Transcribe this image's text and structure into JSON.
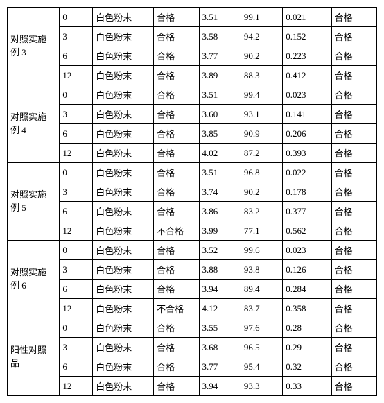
{
  "table": {
    "groups": [
      {
        "label_lines": [
          "对照实施",
          "例 3"
        ],
        "rows": [
          {
            "num": "0",
            "desc": "白色粉末",
            "pass": "合格",
            "v1": "3.51",
            "v2": "99.1",
            "v3": "0.021",
            "res": "合格"
          },
          {
            "num": "3",
            "desc": "白色粉末",
            "pass": "合格",
            "v1": "3.58",
            "v2": "94.2",
            "v3": "0.152",
            "res": "合格"
          },
          {
            "num": "6",
            "desc": "白色粉末",
            "pass": "合格",
            "v1": "3.77",
            "v2": "90.2",
            "v3": "0.223",
            "res": "合格"
          },
          {
            "num": "12",
            "desc": "白色粉末",
            "pass": "合格",
            "v1": "3.89",
            "v2": "88.3",
            "v3": "0.412",
            "res": "合格"
          }
        ]
      },
      {
        "label_lines": [
          "对照实施",
          "例 4"
        ],
        "rows": [
          {
            "num": "0",
            "desc": "白色粉末",
            "pass": "合格",
            "v1": "3.51",
            "v2": "99.4",
            "v3": "0.023",
            "res": "合格"
          },
          {
            "num": "3",
            "desc": "白色粉末",
            "pass": "合格",
            "v1": "3.60",
            "v2": "93.1",
            "v3": "0.141",
            "res": "合格"
          },
          {
            "num": "6",
            "desc": "白色粉末",
            "pass": "合格",
            "v1": "3.85",
            "v2": "90.9",
            "v3": "0.206",
            "res": "合格"
          },
          {
            "num": "12",
            "desc": "白色粉末",
            "pass": "合格",
            "v1": "4.02",
            "v2": "87.2",
            "v3": "0.393",
            "res": "合格"
          }
        ]
      },
      {
        "label_lines": [
          "对照实施",
          "例 5"
        ],
        "rows": [
          {
            "num": "0",
            "desc": "白色粉末",
            "pass": "合格",
            "v1": "3.51",
            "v2": "96.8",
            "v3": "0.022",
            "res": "合格"
          },
          {
            "num": "3",
            "desc": "白色粉末",
            "pass": "合格",
            "v1": "3.74",
            "v2": "90.2",
            "v3": "0.178",
            "res": "合格"
          },
          {
            "num": "6",
            "desc": "白色粉末",
            "pass": "合格",
            "v1": "3.86",
            "v2": "83.2",
            "v3": "0.377",
            "res": "合格"
          },
          {
            "num": "12",
            "desc": "白色粉末",
            "pass": "不合格",
            "v1": "3.99",
            "v2": "77.1",
            "v3": "0.562",
            "res": "合格"
          }
        ]
      },
      {
        "label_lines": [
          "对照实施",
          "例 6"
        ],
        "rows": [
          {
            "num": "0",
            "desc": "白色粉末",
            "pass": "合格",
            "v1": "3.52",
            "v2": "99.6",
            "v3": "0.023",
            "res": "合格"
          },
          {
            "num": "3",
            "desc": "白色粉末",
            "pass": "合格",
            "v1": "3.88",
            "v2": "93.8",
            "v3": "0.126",
            "res": "合格"
          },
          {
            "num": "6",
            "desc": "白色粉末",
            "pass": "合格",
            "v1": "3.94",
            "v2": "89.4",
            "v3": "0.284",
            "res": "合格"
          },
          {
            "num": "12",
            "desc": "白色粉末",
            "pass": "不合格",
            "v1": "4.12",
            "v2": "83.7",
            "v3": "0.358",
            "res": "合格"
          }
        ]
      },
      {
        "label_lines": [
          "阳性对照",
          "品"
        ],
        "rows": [
          {
            "num": "0",
            "desc": "白色粉末",
            "pass": "合格",
            "v1": "3.55",
            "v2": "97.6",
            "v3": "0.28",
            "res": "合格"
          },
          {
            "num": "3",
            "desc": "白色粉末",
            "pass": "合格",
            "v1": "3.68",
            "v2": "96.5",
            "v3": "0.29",
            "res": "合格"
          },
          {
            "num": "6",
            "desc": "白色粉末",
            "pass": "合格",
            "v1": "3.77",
            "v2": "95.4",
            "v3": "0.32",
            "res": "合格"
          },
          {
            "num": "12",
            "desc": "白色粉末",
            "pass": "合格",
            "v1": "3.94",
            "v2": "93.3",
            "v3": "0.33",
            "res": "合格"
          }
        ]
      }
    ]
  }
}
